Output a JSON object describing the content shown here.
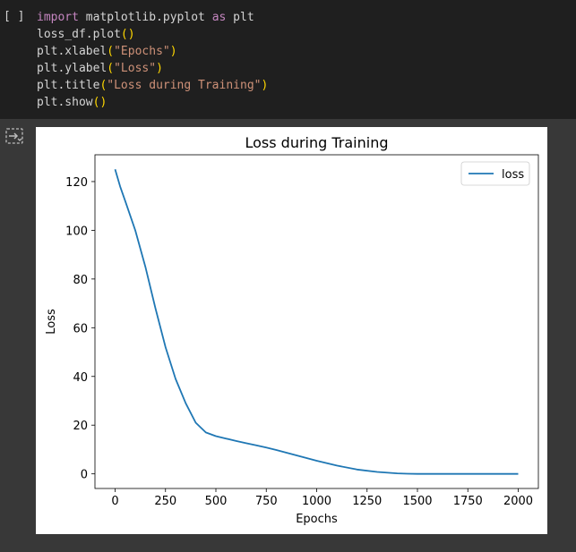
{
  "cell": {
    "run_indicator": "[ ]",
    "code_lines": [
      [
        {
          "t": "import",
          "c": "kw"
        },
        {
          "t": " matplotlib.pyplot ",
          "c": ""
        },
        {
          "t": "as",
          "c": "kw"
        },
        {
          "t": " plt",
          "c": ""
        }
      ],
      [
        {
          "t": "loss_df.plot",
          "c": ""
        },
        {
          "t": "()",
          "c": "paren"
        }
      ],
      [
        {
          "t": "plt.xlabel",
          "c": ""
        },
        {
          "t": "(",
          "c": "paren"
        },
        {
          "t": "\"Epochs\"",
          "c": "str"
        },
        {
          "t": ")",
          "c": "paren"
        }
      ],
      [
        {
          "t": "plt.ylabel",
          "c": ""
        },
        {
          "t": "(",
          "c": "paren"
        },
        {
          "t": "\"Loss\"",
          "c": "str"
        },
        {
          "t": ")",
          "c": "paren"
        }
      ],
      [
        {
          "t": "plt.title",
          "c": ""
        },
        {
          "t": "(",
          "c": "paren"
        },
        {
          "t": "\"Loss during Training\"",
          "c": "str"
        },
        {
          "t": ")",
          "c": "paren"
        }
      ],
      [
        {
          "t": "plt.show",
          "c": ""
        },
        {
          "t": "()",
          "c": "paren"
        }
      ]
    ]
  },
  "output": {
    "icon": "output-toggle-icon"
  },
  "colors": {
    "line": "#1f77b4",
    "editor_bg": "#1f1f1f",
    "output_bg": "#383838"
  },
  "chart_data": {
    "type": "line",
    "title": "Loss during Training",
    "xlabel": "Epochs",
    "ylabel": "Loss",
    "xlim": [
      -100,
      2100
    ],
    "ylim": [
      -6,
      131
    ],
    "xticks": [
      0,
      250,
      500,
      750,
      1000,
      1250,
      1500,
      1750,
      2000
    ],
    "yticks": [
      0,
      20,
      40,
      60,
      80,
      100,
      120
    ],
    "legend": {
      "position": "top-right",
      "entries": [
        "loss"
      ]
    },
    "grid": false,
    "series": [
      {
        "name": "loss",
        "x": [
          0,
          25,
          50,
          100,
          150,
          200,
          250,
          300,
          350,
          400,
          450,
          500,
          550,
          600,
          650,
          700,
          750,
          800,
          900,
          1000,
          1100,
          1200,
          1300,
          1400,
          1450,
          1500,
          1600,
          1700,
          1800,
          1900,
          2000
        ],
        "y": [
          125,
          118,
          112,
          100,
          85,
          68,
          52,
          39,
          29,
          21,
          17,
          15.5,
          14.5,
          13.5,
          12.6,
          11.7,
          10.8,
          9.8,
          7.6,
          5.4,
          3.4,
          1.8,
          0.8,
          0.2,
          0.05,
          0,
          0,
          0,
          0,
          0,
          0
        ]
      }
    ]
  }
}
